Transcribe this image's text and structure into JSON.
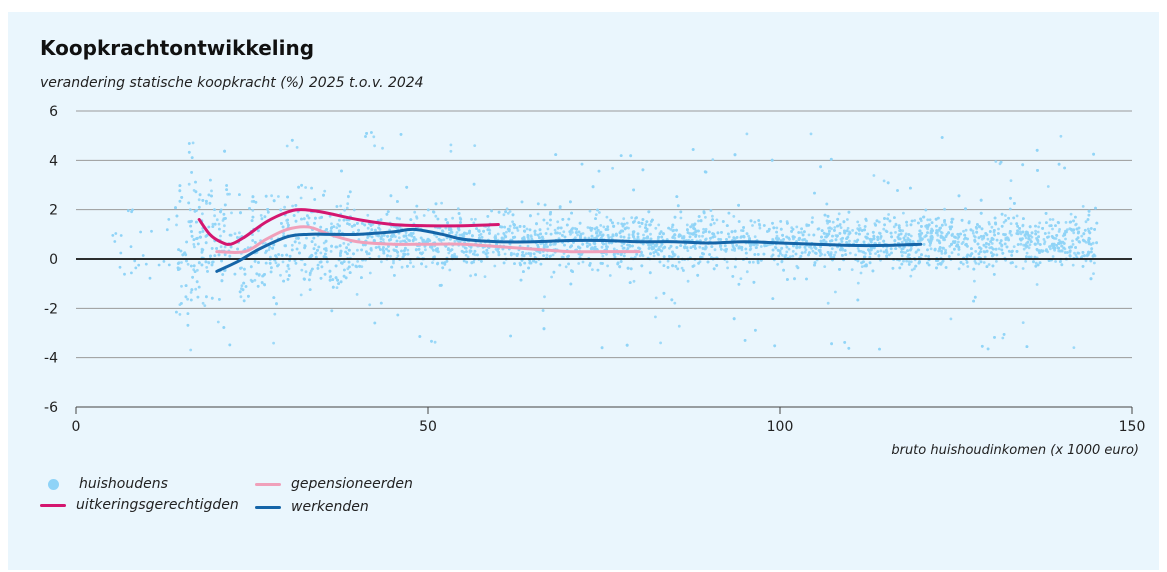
{
  "chart_data": {
    "type": "scatter",
    "title": "Koopkrachtontwikkeling",
    "ylabel": "verandering statische koopkracht (%) 2025 t.o.v. 2024",
    "xlabel": "bruto huishoudinkomen (x 1000 euro)",
    "xlim": [
      0,
      150
    ],
    "ylim": [
      -6,
      6
    ],
    "x_ticks": [
      "0",
      "50",
      "100",
      "150"
    ],
    "y_ticks": [
      "6",
      "4",
      "2",
      "0",
      "-2",
      "-4",
      "-6"
    ],
    "grid": true,
    "legend_position": "bottom-left",
    "colors": {
      "huishoudens": "#8fd3f7",
      "uitkeringsgerechtigden": "#d4166f",
      "gepensioneerden": "#f0a0ba",
      "werkenden": "#1565a8",
      "background": "#eaf6fd",
      "grid": "#9a9a9a"
    },
    "scatter": {
      "name": "huishoudens",
      "x_range": [
        5,
        145
      ],
      "center": 0.7,
      "description_band": [
        -2,
        2
      ]
    },
    "series": [
      {
        "name": "uitkeringsgerechtigden",
        "x": [
          17.5,
          19,
          20.5,
          22,
          24,
          27,
          30,
          32,
          35,
          40,
          45,
          50,
          55,
          60
        ],
        "y": [
          1.6,
          1.0,
          0.7,
          0.6,
          0.9,
          1.5,
          1.9,
          2.0,
          1.9,
          1.6,
          1.4,
          1.35,
          1.35,
          1.4
        ]
      },
      {
        "name": "gepensioneerden",
        "x": [
          20,
          24,
          27,
          30,
          33,
          36,
          40,
          45,
          50,
          55,
          60,
          65,
          70,
          75,
          80
        ],
        "y": [
          0.3,
          0.3,
          0.8,
          1.2,
          1.3,
          1.0,
          0.7,
          0.6,
          0.6,
          0.6,
          0.5,
          0.4,
          0.3,
          0.3,
          0.3
        ]
      },
      {
        "name": "werkenden",
        "x": [
          20,
          23,
          26,
          30,
          33,
          36,
          40,
          45,
          48,
          52,
          55,
          60,
          65,
          70,
          75,
          80,
          85,
          90,
          95,
          100,
          105,
          110,
          115,
          120
        ],
        "y": [
          -0.5,
          -0.1,
          0.4,
          0.9,
          1.0,
          1.0,
          1.0,
          1.1,
          1.2,
          1.0,
          0.8,
          0.7,
          0.7,
          0.75,
          0.75,
          0.7,
          0.7,
          0.65,
          0.7,
          0.65,
          0.6,
          0.55,
          0.55,
          0.6
        ]
      }
    ],
    "legend": [
      {
        "name": "huishoudens",
        "kind": "dot"
      },
      {
        "name": "uitkeringsgerechtigden",
        "kind": "line"
      },
      {
        "name": "gepensioneerden",
        "kind": "line"
      },
      {
        "name": "werkenden",
        "kind": "line"
      }
    ]
  }
}
